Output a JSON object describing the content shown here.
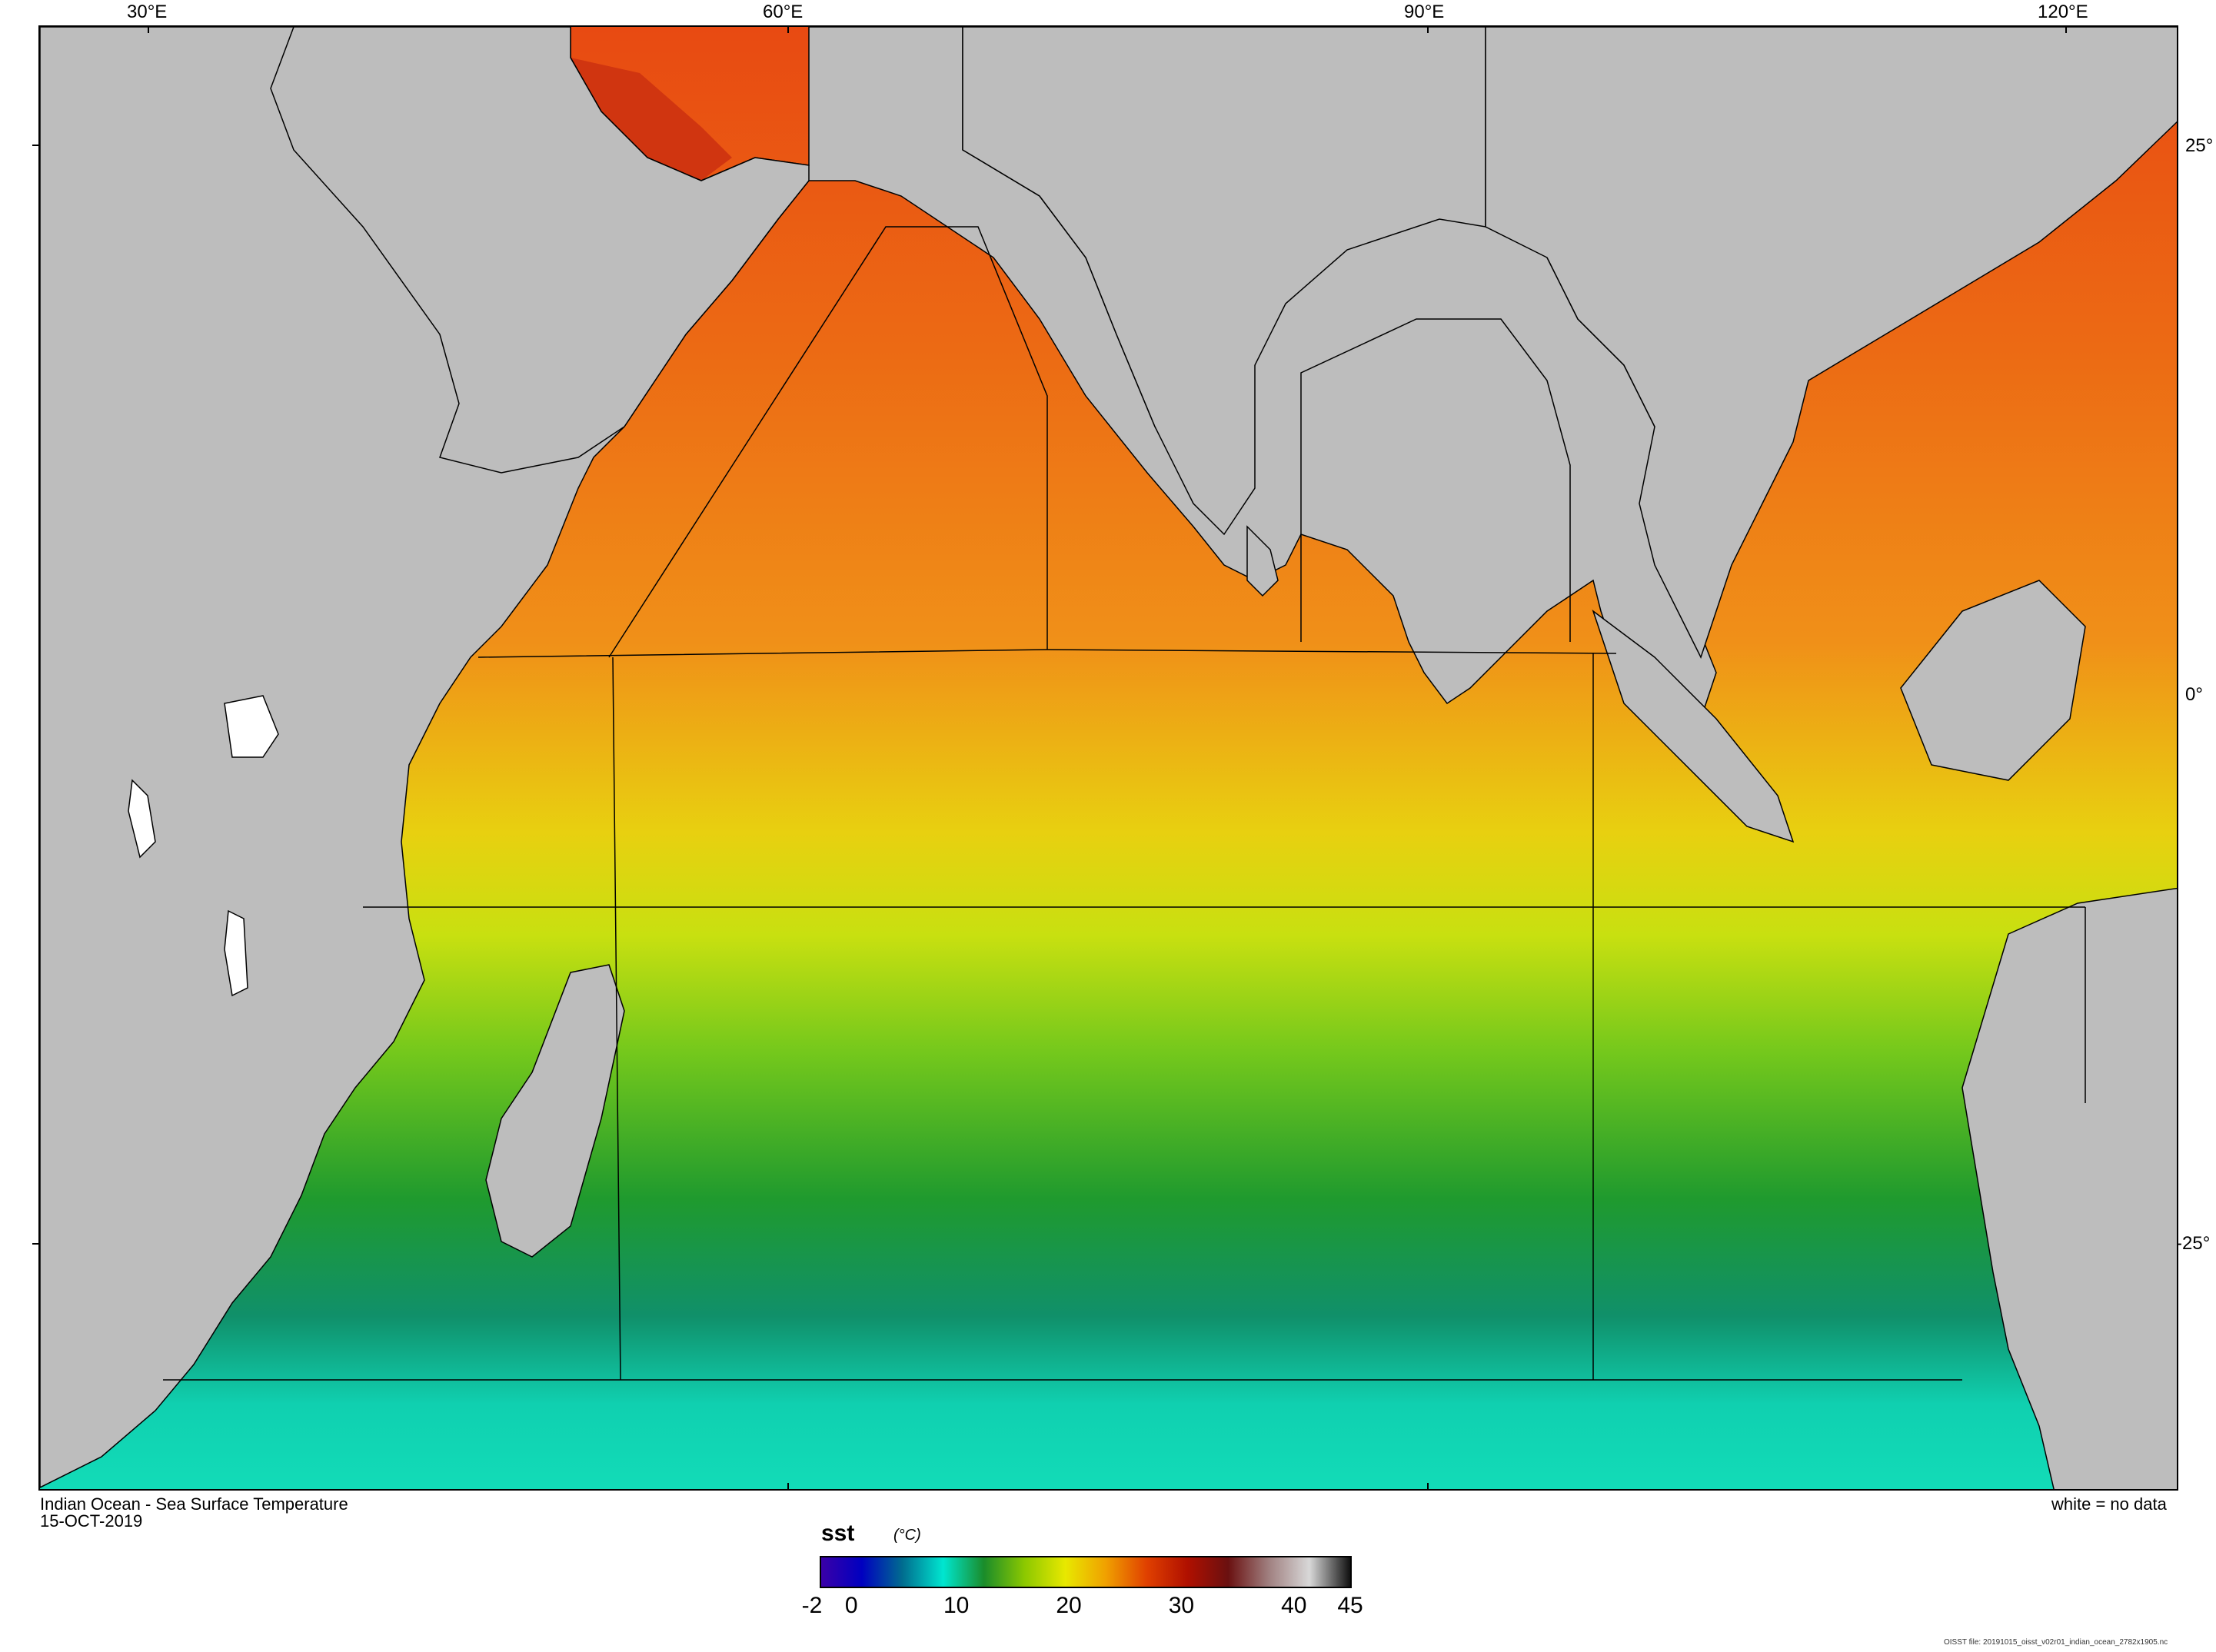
{
  "map": {
    "title": "Indian Ocean - Sea Surface Temperature",
    "date": "15-OCT-2019",
    "no_data_note": "white = no data",
    "file_note": "OISST file: 20191015_oisst_v02r01_indian_ocean_2782x1905.nc",
    "longitude_labels": [
      "30°E",
      "60°E",
      "90°E",
      "120°E"
    ],
    "latitude_labels": [
      "25°",
      "0°",
      "-25°"
    ],
    "land_color": "#bdbdbd",
    "no_data_color": "#ffffff"
  },
  "colorbar": {
    "variable": "sst",
    "units": "(°C)",
    "tick_labels": [
      "-2",
      "0",
      "10",
      "20",
      "30",
      "40",
      "45"
    ],
    "range": [
      -2,
      45
    ],
    "colors": [
      "#3a00a8",
      "#0000c0",
      "#006d8f",
      "#00e6d0",
      "#1a8c2a",
      "#8cc800",
      "#e8e800",
      "#f0a000",
      "#e04000",
      "#b01000",
      "#6a1010",
      "#a08080",
      "#d8d8d8",
      "#101010"
    ]
  }
}
